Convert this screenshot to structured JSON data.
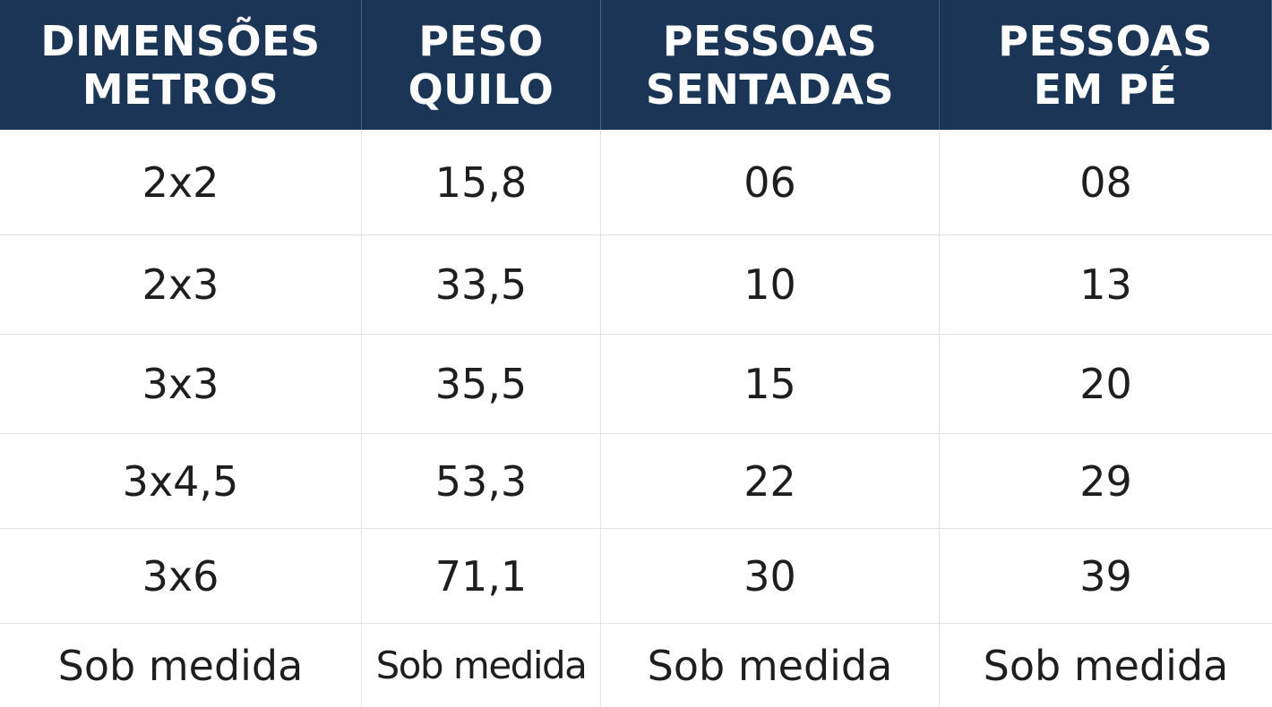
{
  "table": {
    "headers": [
      [
        "DIMENSÕES",
        "METROS"
      ],
      [
        "PESO",
        "QUILO"
      ],
      [
        "PESSOAS",
        "SENTADAS"
      ],
      [
        "PESSOAS",
        "EM PÉ"
      ]
    ],
    "rows": [
      [
        "2x2",
        "15,8",
        "06",
        "08"
      ],
      [
        "2x3",
        "33,5",
        "10",
        "13"
      ],
      [
        "3x3",
        "35,5",
        "15",
        "20"
      ],
      [
        "3x4,5",
        "53,3",
        "22",
        "29"
      ],
      [
        "3x6",
        "71,1",
        "30",
        "39"
      ],
      [
        "Sob medida",
        "Sob medida",
        "Sob medida",
        "Sob medida"
      ]
    ]
  },
  "colors": {
    "header_bg": "#1b3557",
    "header_text": "#ffffff",
    "body_text": "#1e1e1e",
    "grid_line": "#e3e3e3"
  }
}
